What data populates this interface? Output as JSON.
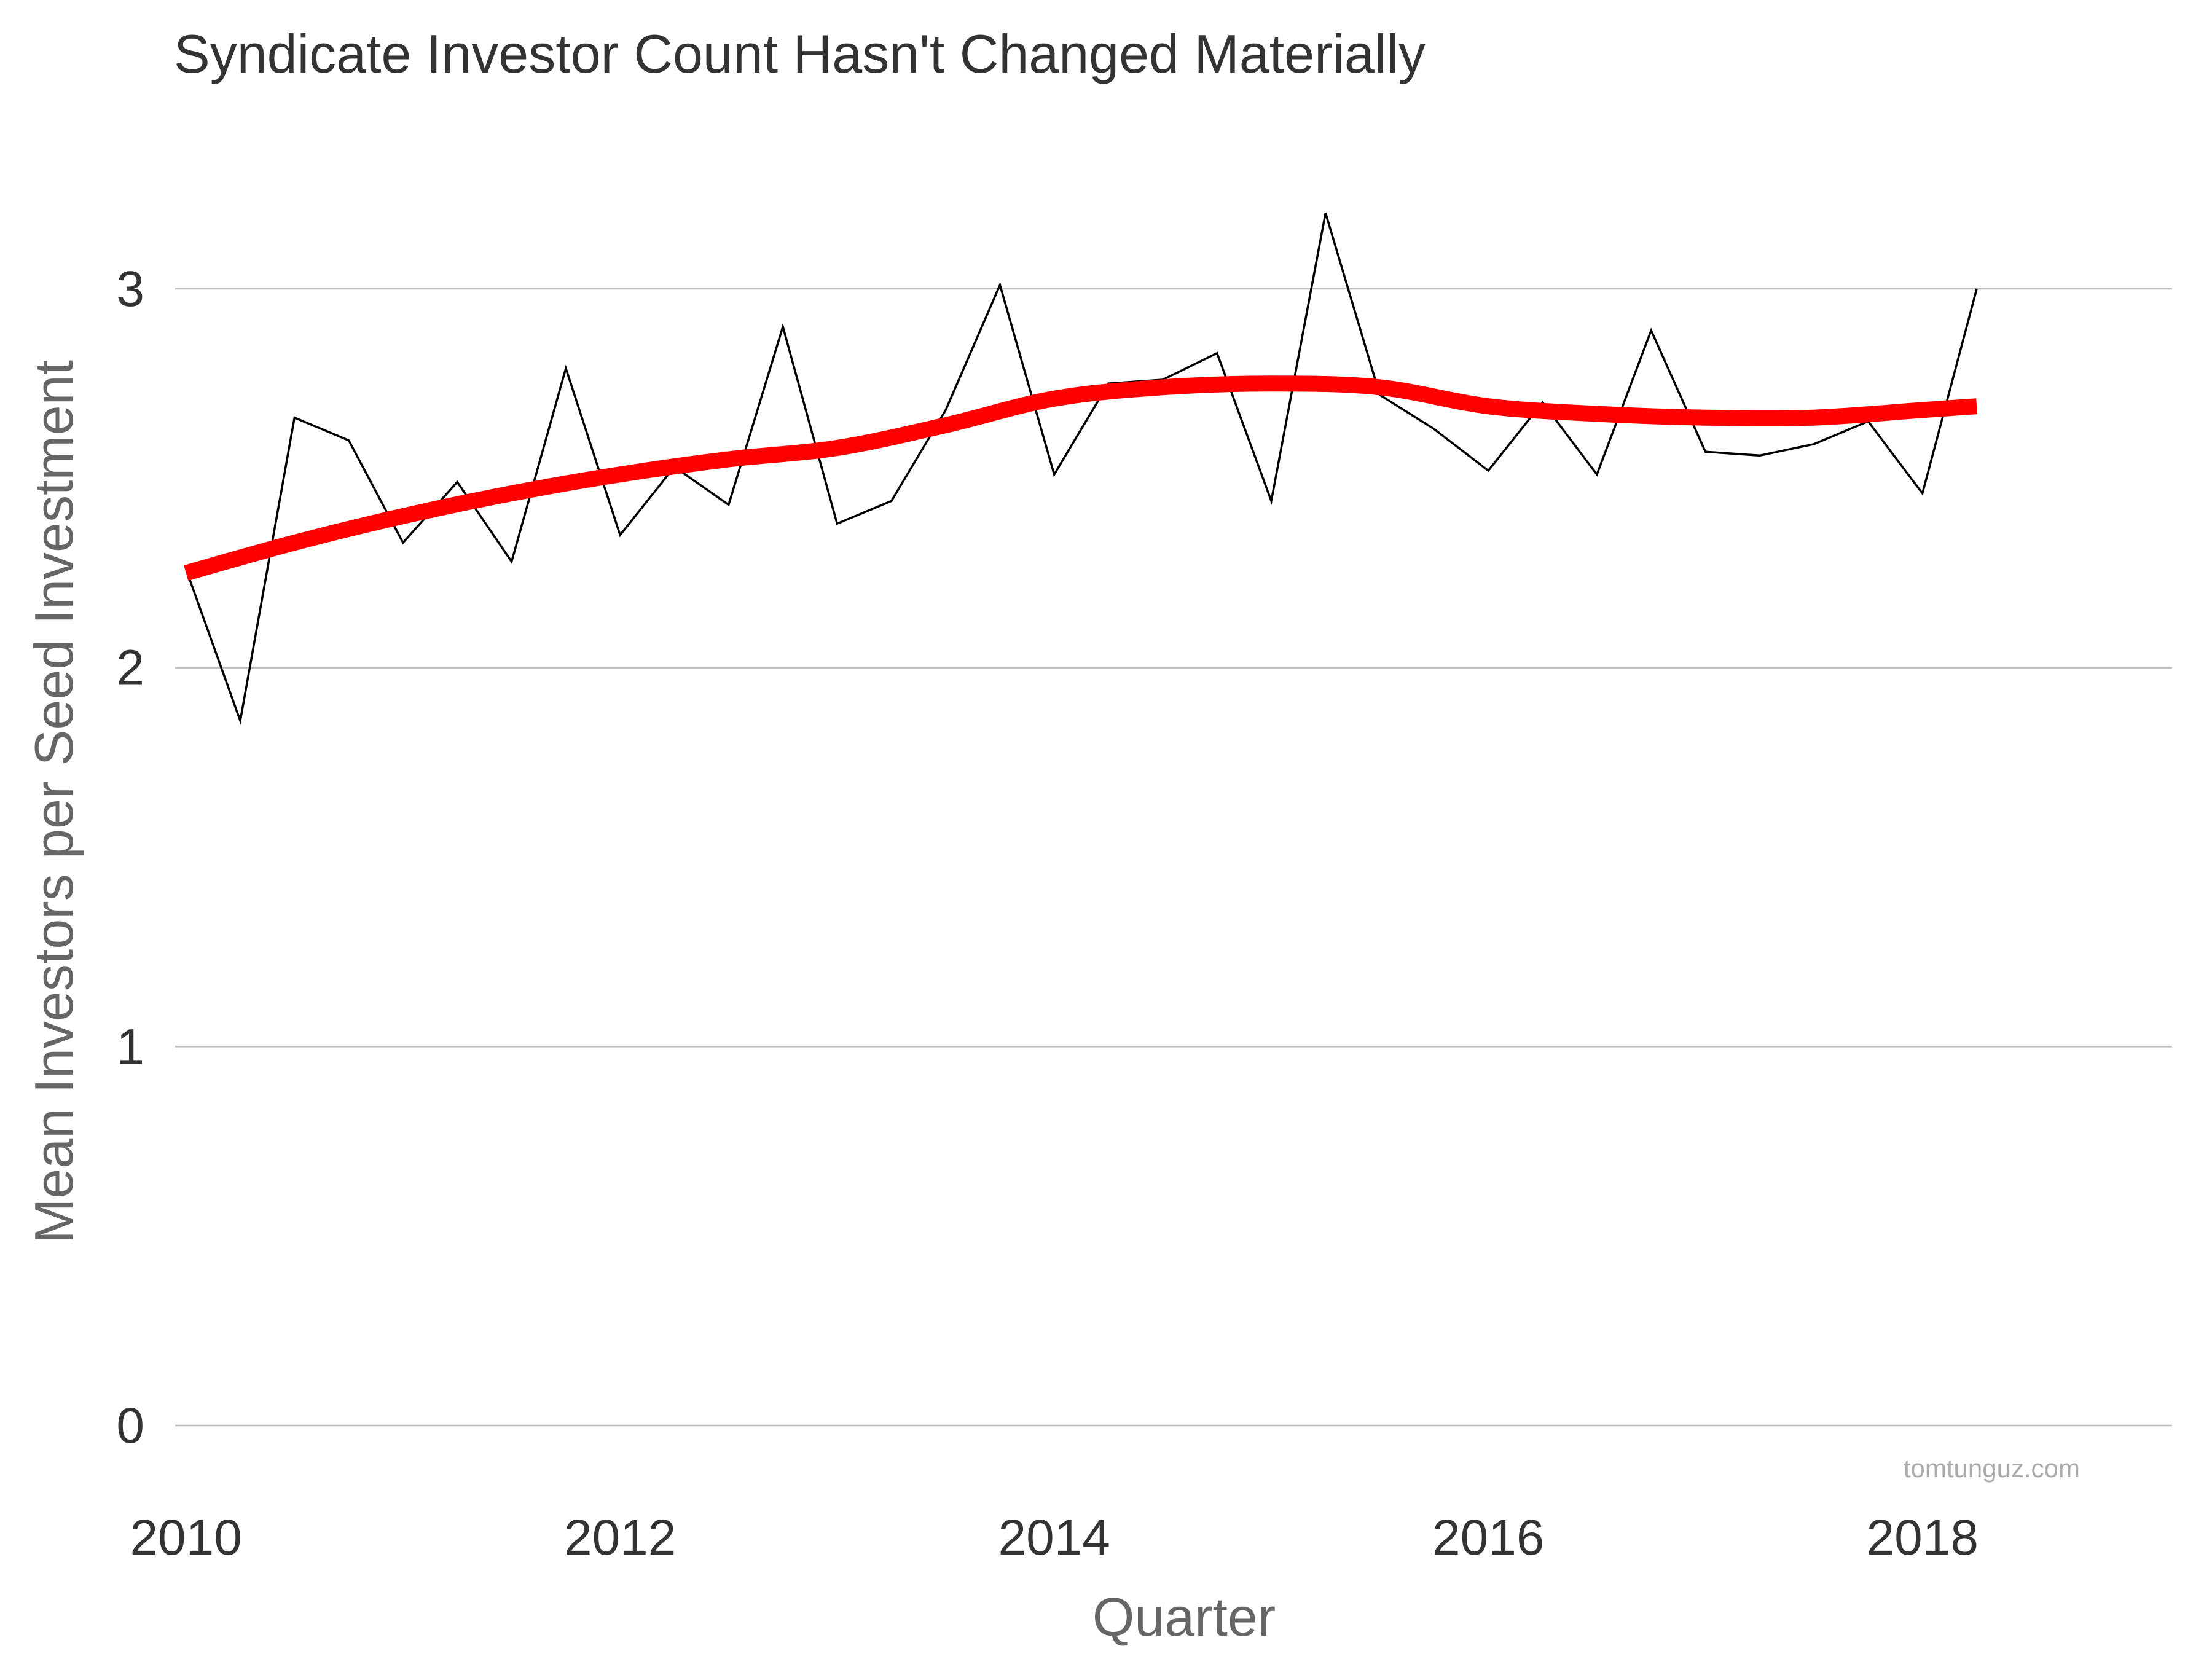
{
  "chart_data": {
    "type": "line",
    "title": "Syndicate Investor Count Hasn't Changed Materially",
    "xlabel": "Quarter",
    "ylabel": "Mean Investors per Seed Investment",
    "caption": "tomtunguz.com",
    "xlim": [
      2009.95,
      2019.15
    ],
    "ylim": [
      0,
      3.3
    ],
    "x_ticks": [
      2010,
      2012,
      2014,
      2016,
      2018
    ],
    "y_ticks": [
      0,
      1,
      2,
      3
    ],
    "grid": "horizontal",
    "colors": {
      "series": "#000000",
      "trend": "#ff0000",
      "grid": "#bdbdbd"
    },
    "series": [
      {
        "x": [
          2010.0,
          2010.25,
          2010.5,
          2010.75,
          2011.0,
          2011.25,
          2011.5,
          2011.75,
          2012.0,
          2012.25,
          2012.5,
          2012.75,
          2013.0,
          2013.25,
          2013.5,
          2013.75,
          2014.0,
          2014.25,
          2014.5,
          2014.75,
          2015.0,
          2015.25,
          2015.5,
          2015.75,
          2016.0,
          2016.25,
          2016.5,
          2016.75,
          2017.0,
          2017.25,
          2017.5,
          2017.75,
          2018.0,
          2018.25
        ],
        "values": [
          2.26,
          1.86,
          2.66,
          2.6,
          2.33,
          2.49,
          2.28,
          2.79,
          2.35,
          2.53,
          2.43,
          2.9,
          2.38,
          2.44,
          2.68,
          3.01,
          2.51,
          2.75,
          2.76,
          2.83,
          2.44,
          3.2,
          2.72,
          2.63,
          2.52,
          2.7,
          2.51,
          2.89,
          2.57,
          2.56,
          2.59,
          2.65,
          2.46,
          3.0
        ]
      },
      {
        "x": [
          2010.0,
          2010.5,
          2011.0,
          2011.5,
          2012.0,
          2012.5,
          2013.0,
          2013.5,
          2014.0,
          2014.5,
          2015.0,
          2015.5,
          2016.0,
          2016.5,
          2017.0,
          2017.5,
          2018.0,
          2018.25
        ],
        "values": [
          2.25,
          2.33,
          2.4,
          2.46,
          2.51,
          2.55,
          2.58,
          2.64,
          2.71,
          2.74,
          2.75,
          2.74,
          2.69,
          2.67,
          2.66,
          2.66,
          2.68,
          2.69
        ]
      }
    ]
  }
}
